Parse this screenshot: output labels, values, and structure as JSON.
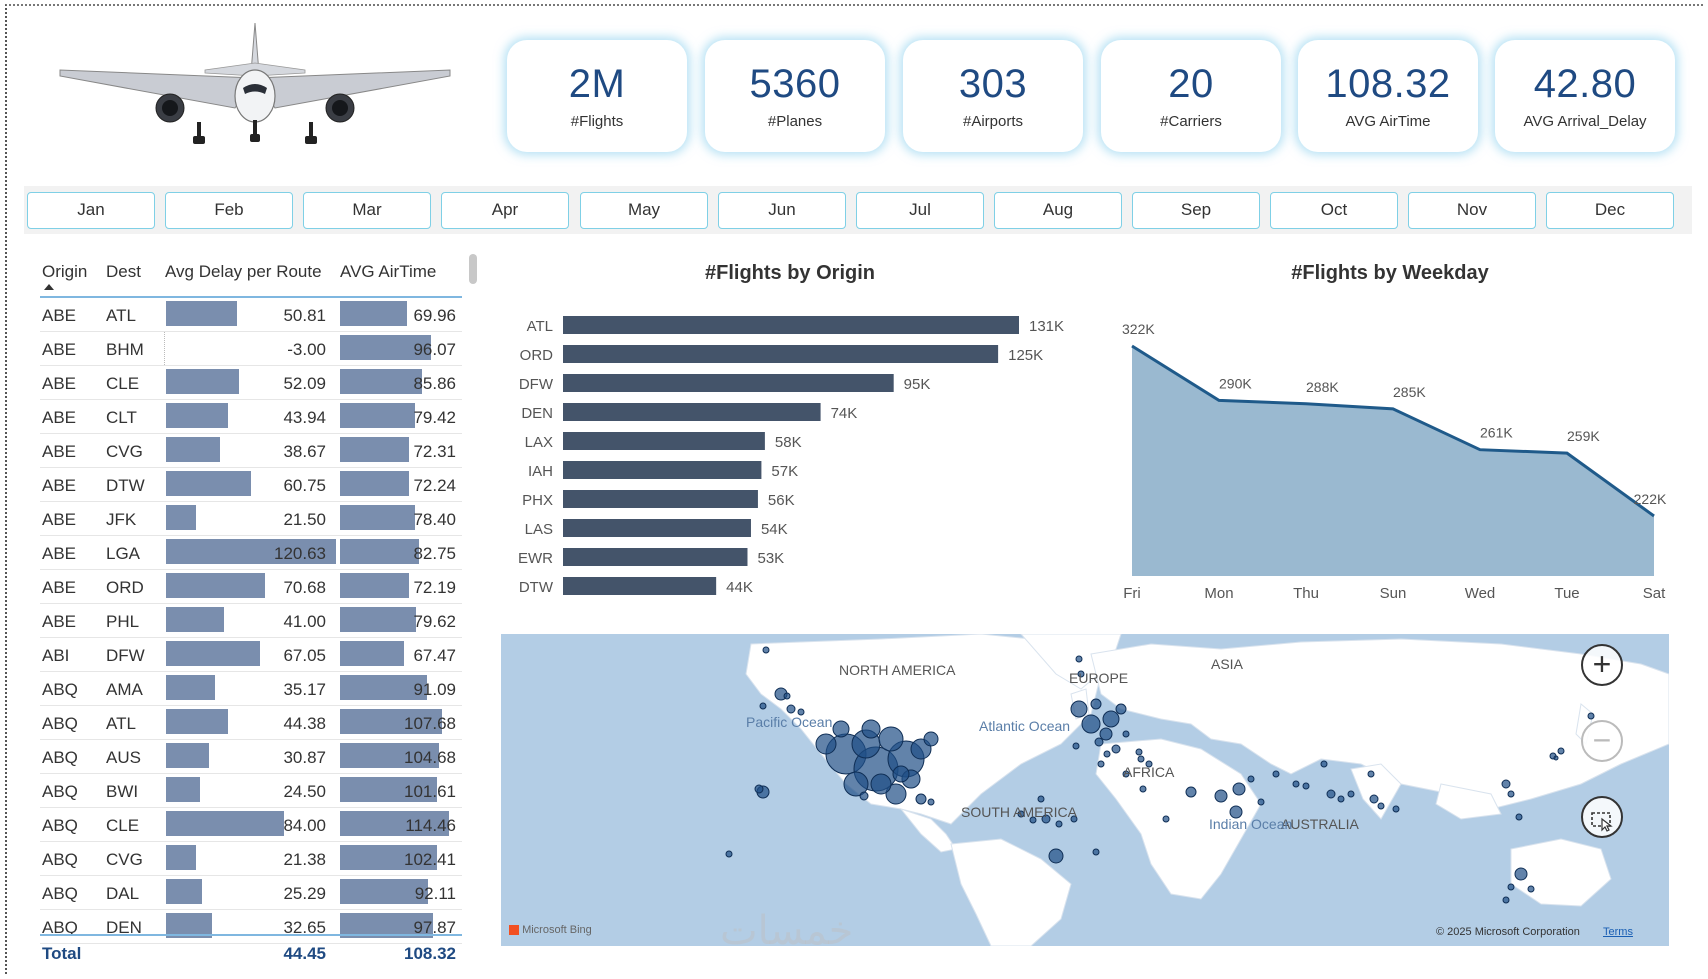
{
  "kpis": [
    {
      "value": "2M",
      "label": "#Flights"
    },
    {
      "value": "5360",
      "label": "#Planes"
    },
    {
      "value": "303",
      "label": "#Airports"
    },
    {
      "value": "20",
      "label": "#Carriers"
    },
    {
      "value": "108.32",
      "label": "AVG AirTime"
    },
    {
      "value": "42.80",
      "label": "AVG Arrival_Delay"
    }
  ],
  "months": [
    "Jan",
    "Feb",
    "Mar",
    "Apr",
    "May",
    "Jun",
    "Jul",
    "Aug",
    "Sep",
    "Oct",
    "Nov",
    "Dec"
  ],
  "table": {
    "headers": {
      "origin": "Origin",
      "dest": "Dest",
      "delay": "Avg Delay per Route",
      "airtime": "AVG AirTime"
    },
    "rows": [
      {
        "origin": "ABE",
        "dest": "ATL",
        "delay": "50.81",
        "airtime": "69.96"
      },
      {
        "origin": "ABE",
        "dest": "BHM",
        "delay": "-3.00",
        "airtime": "96.07"
      },
      {
        "origin": "ABE",
        "dest": "CLE",
        "delay": "52.09",
        "airtime": "85.86"
      },
      {
        "origin": "ABE",
        "dest": "CLT",
        "delay": "43.94",
        "airtime": "79.42"
      },
      {
        "origin": "ABE",
        "dest": "CVG",
        "delay": "38.67",
        "airtime": "72.31"
      },
      {
        "origin": "ABE",
        "dest": "DTW",
        "delay": "60.75",
        "airtime": "72.24"
      },
      {
        "origin": "ABE",
        "dest": "JFK",
        "delay": "21.50",
        "airtime": "78.40"
      },
      {
        "origin": "ABE",
        "dest": "LGA",
        "delay": "120.63",
        "airtime": "82.75"
      },
      {
        "origin": "ABE",
        "dest": "ORD",
        "delay": "70.68",
        "airtime": "72.19"
      },
      {
        "origin": "ABE",
        "dest": "PHL",
        "delay": "41.00",
        "airtime": "79.62"
      },
      {
        "origin": "ABI",
        "dest": "DFW",
        "delay": "67.05",
        "airtime": "67.47"
      },
      {
        "origin": "ABQ",
        "dest": "AMA",
        "delay": "35.17",
        "airtime": "91.09"
      },
      {
        "origin": "ABQ",
        "dest": "ATL",
        "delay": "44.38",
        "airtime": "107.68"
      },
      {
        "origin": "ABQ",
        "dest": "AUS",
        "delay": "30.87",
        "airtime": "104.68"
      },
      {
        "origin": "ABQ",
        "dest": "BWI",
        "delay": "24.50",
        "airtime": "101.61"
      },
      {
        "origin": "ABQ",
        "dest": "CLE",
        "delay": "84.00",
        "airtime": "114.46"
      },
      {
        "origin": "ABQ",
        "dest": "CVG",
        "delay": "21.38",
        "airtime": "102.41"
      },
      {
        "origin": "ABQ",
        "dest": "DAL",
        "delay": "25.29",
        "airtime": "92.11"
      },
      {
        "origin": "ABQ",
        "dest": "DEN",
        "delay": "32.65",
        "airtime": "97.87"
      }
    ],
    "total": {
      "label": "Total",
      "delay": "44.45",
      "airtime": "108.32"
    }
  },
  "chart_data": [
    {
      "type": "bar",
      "title": "#Flights by Origin",
      "orientation": "horizontal",
      "categories": [
        "ATL",
        "ORD",
        "DFW",
        "DEN",
        "LAX",
        "IAH",
        "PHX",
        "LAS",
        "EWR",
        "DTW"
      ],
      "values": [
        131000,
        125000,
        95000,
        74000,
        58000,
        57000,
        56000,
        54000,
        53000,
        44000
      ],
      "labels": [
        "131K",
        "125K",
        "95K",
        "74K",
        "58K",
        "57K",
        "56K",
        "54K",
        "53K",
        "44K"
      ],
      "color": "#44546a"
    },
    {
      "type": "area",
      "title": "#Flights by Weekday",
      "categories": [
        "Fri",
        "Mon",
        "Thu",
        "Sun",
        "Wed",
        "Tue",
        "Sat"
      ],
      "values": [
        322000,
        290000,
        288000,
        285000,
        261000,
        259000,
        222000
      ],
      "labels": [
        "322K",
        "290K",
        "288K",
        "285K",
        "261K",
        "259K",
        "222K"
      ],
      "fill": "#9ab9d0",
      "line": "#1f5a8a"
    }
  ],
  "map": {
    "continents": [
      "NORTH AMERICA",
      "EUROPE",
      "ASIA",
      "AFRICA",
      "SOUTH AMERICA",
      "AUSTRALIA"
    ],
    "oceans": [
      "Pacific Ocean",
      "Atlantic Ocean",
      "Indian Ocean"
    ],
    "zoom_in": "+",
    "zoom_out": "−",
    "provider": "Microsoft Bing",
    "copyright": "© 2025 Microsoft Corporation",
    "terms": "Terms"
  },
  "watermark": "خمسات"
}
